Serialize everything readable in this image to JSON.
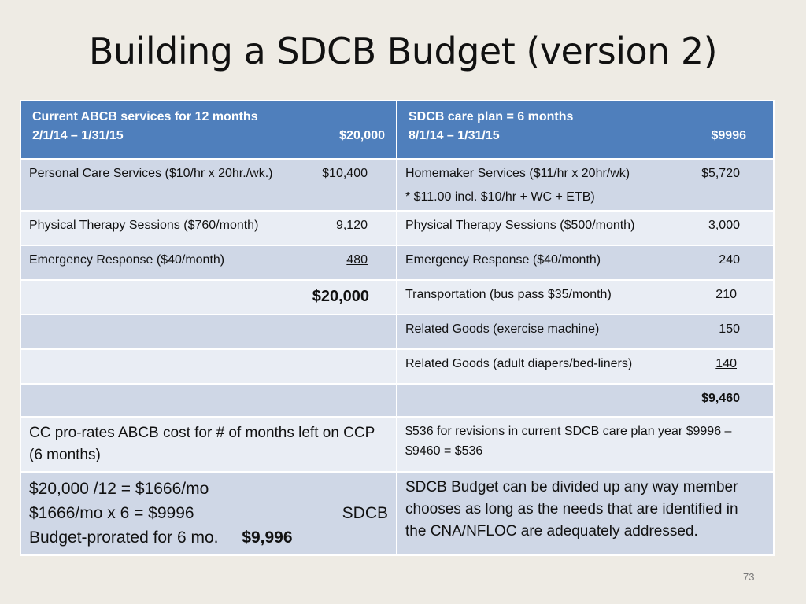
{
  "title": "Building a SDCB Budget (version 2)",
  "header": {
    "left_line1": "Current ABCB services for 12 months",
    "left_line2": "2/1/14 – 1/31/15",
    "left_amount": "$20,000",
    "right_line1": "SDCB care plan = 6 months",
    "right_line2": "8/1/14 – 1/31/15",
    "right_amount": "$9996"
  },
  "rows": [
    {
      "left_label": "Personal Care Services  ($10/hr x 20hr./wk.)",
      "left_amount": "$10,400",
      "right_label": "Homemaker Services ($11/hr x 20hr/wk)",
      "right_amount": "$5,720",
      "right_note": "* $11.00  incl. $10/hr + WC + ETB)"
    },
    {
      "left_label": "Physical Therapy Sessions ($760/month)",
      "left_amount": "9,120",
      "right_label": "Physical Therapy Sessions ($500/month)",
      "right_amount": "3,000"
    },
    {
      "left_label": "Emergency Response ($40/month)",
      "left_amount": "480",
      "right_label": "Emergency Response ($40/month)",
      "right_amount": "240"
    },
    {
      "left_total": "$20,000",
      "right_label": "Transportation (bus pass $35/month)",
      "right_amount": "210"
    },
    {
      "right_label": "Related Goods (exercise machine)",
      "right_amount": "150"
    },
    {
      "right_label": "Related Goods (adult diapers/bed-liners)",
      "right_amount": "140"
    },
    {
      "right_total": "$9,460"
    }
  ],
  "prorate": {
    "left_text": "CC pro-rates ABCB cost for # of months left on CCP (6 months)",
    "right_text": "$536 for revisions in current SDCB care plan year $9996 – $9460 = $536"
  },
  "final": {
    "left_line1": "$20,000 /12 = $1666/mo",
    "left_line2a": "$1666/mo x 6 = $9996",
    "left_line2b": "SDCB",
    "left_line3": "Budget-prorated for 6 mo.",
    "left_amount": "$9,996",
    "right_text": "SDCB Budget can be divided up any way member chooses as long as the needs that are identified in the CNA/NFLOC are adequately addressed."
  },
  "page_number": "73",
  "colors": {
    "header_bg": "#4f7fbc",
    "row_dark": "#cfd7e6",
    "row_light": "#e9edf4",
    "background": "#eeebe4"
  }
}
